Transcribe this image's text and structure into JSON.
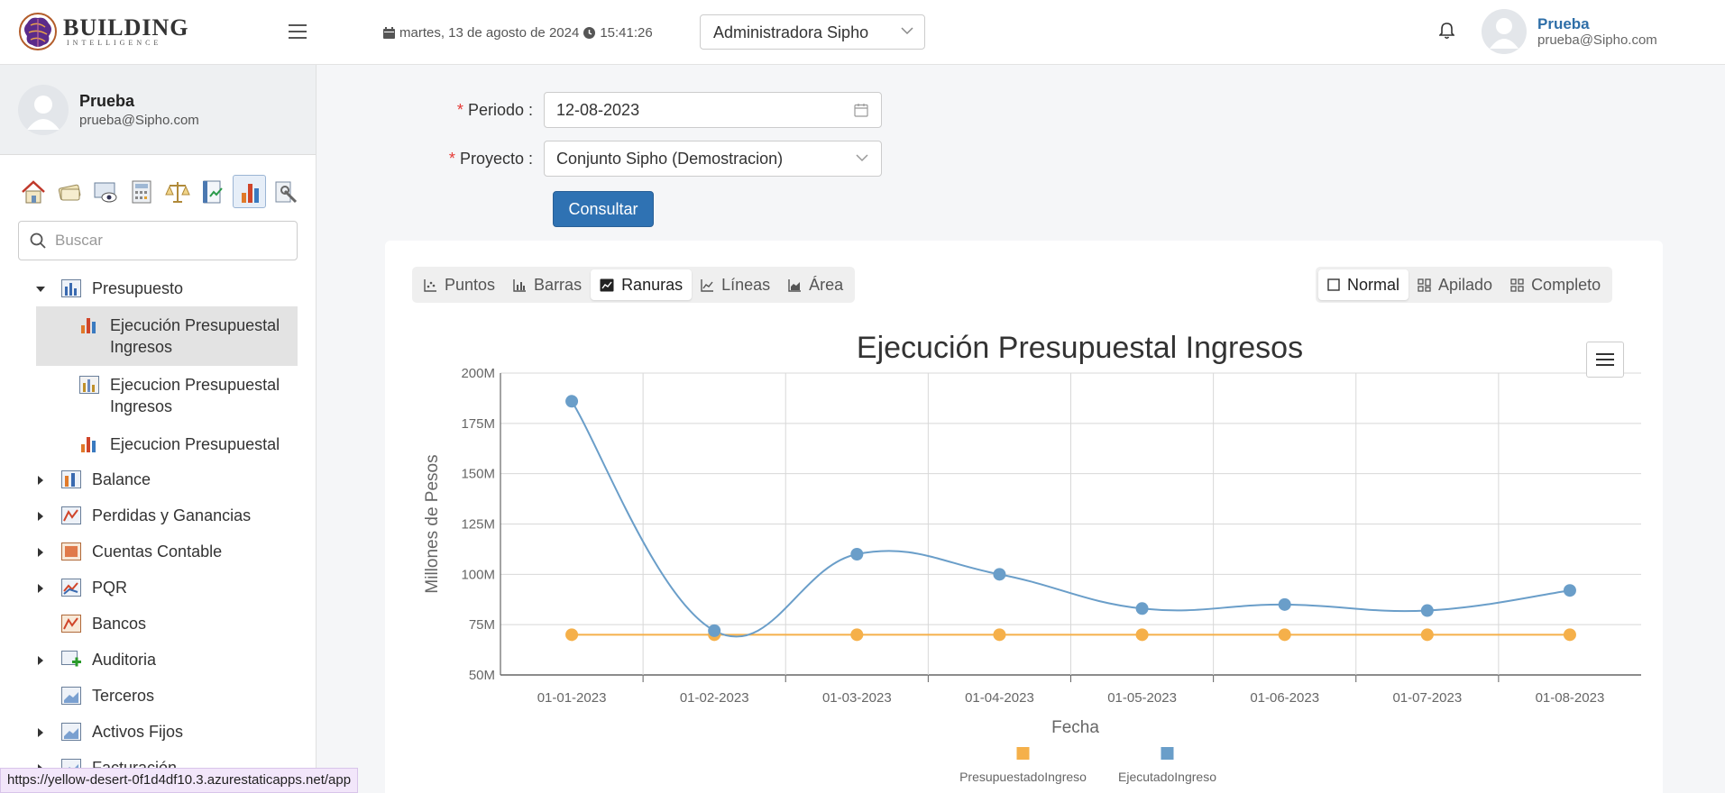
{
  "header": {
    "logo_main": "BUILDING",
    "logo_sub": "INTELLIGENCE",
    "date": "martes, 13 de agosto de 2024",
    "time": "15:41:26",
    "role_select": "Administradora Sipho",
    "user_name": "Prueba",
    "user_email": "prueba@Sipho.com"
  },
  "sidebar": {
    "user_name": "Prueba",
    "user_email": "prueba@Sipho.com",
    "search_placeholder": "Buscar",
    "tree": [
      {
        "label": "Presupuesto",
        "expanded": true
      },
      {
        "label": "Balance"
      },
      {
        "label": "Perdidas y Ganancias"
      },
      {
        "label": "Cuentas Contable"
      },
      {
        "label": "PQR"
      },
      {
        "label": "Bancos"
      },
      {
        "label": "Auditoria"
      },
      {
        "label": "Terceros"
      },
      {
        "label": "Activos Fijos"
      },
      {
        "label": "Facturación"
      }
    ],
    "sub_items": [
      {
        "label": "Ejecución Presupuestal Ingresos",
        "active": true
      },
      {
        "label": "Ejecucion Presupuestal Ingresos"
      },
      {
        "label": "Ejecucion Presupuestal"
      }
    ]
  },
  "form": {
    "periodo_label": "Periodo",
    "periodo_value": "12-08-2023",
    "proyecto_label": "Proyecto",
    "proyecto_value": "Conjunto Sipho (Demostracion)",
    "consultar_label": "Consultar"
  },
  "chart_types": [
    "Puntos",
    "Barras",
    "Ranuras",
    "Líneas",
    "Área"
  ],
  "chart_type_selected": "Ranuras",
  "stack_modes": [
    "Normal",
    "Apilado",
    "Completo"
  ],
  "stack_selected": "Normal",
  "status_url": "https://yellow-desert-0f1d4df10.3.azurestaticapps.net/app",
  "colors": {
    "primary": "#2f72b3",
    "presupuestado": "#f5b04a",
    "ejecutado": "#6a9ec9"
  },
  "chart_data": {
    "type": "line",
    "title": "Ejecución Presupuestal Ingresos",
    "xlabel": "Fecha",
    "ylabel": "Millones de Pesos",
    "categories": [
      "01-01-2023",
      "01-02-2023",
      "01-03-2023",
      "01-04-2023",
      "01-05-2023",
      "01-06-2023",
      "01-07-2023",
      "01-08-2023"
    ],
    "ylim": [
      50000000,
      200000000
    ],
    "yticks": [
      "50M",
      "75M",
      "100M",
      "125M",
      "150M",
      "175M",
      "200M"
    ],
    "grid": true,
    "legend": "bottom",
    "series": [
      {
        "name": "PresupuestadoIngreso",
        "values": [
          70000000,
          70000000,
          70000000,
          70000000,
          70000000,
          70000000,
          70000000,
          70000000
        ]
      },
      {
        "name": "EjecutadoIngreso",
        "values": [
          186000000,
          72000000,
          110000000,
          100000000,
          83000000,
          85000000,
          82000000,
          92000000
        ]
      }
    ]
  }
}
